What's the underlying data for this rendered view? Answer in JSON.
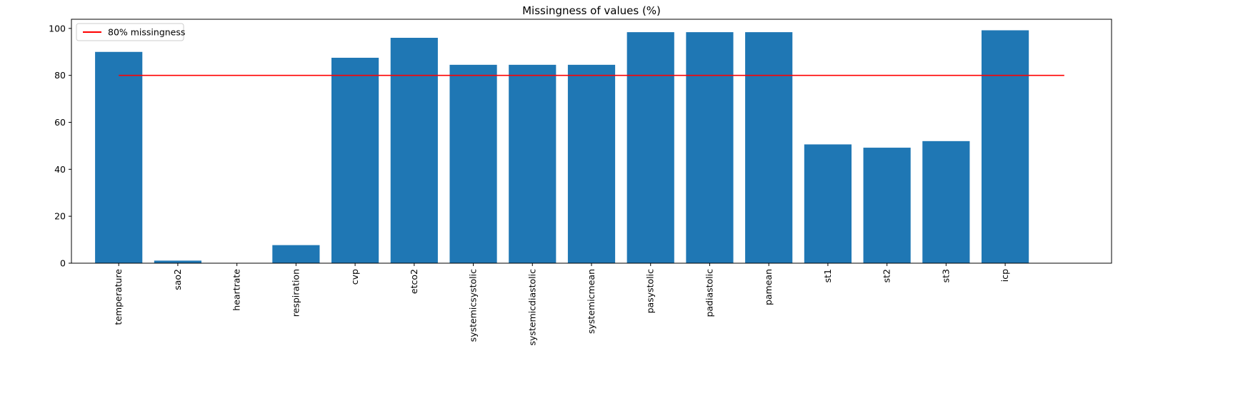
{
  "chart_data": {
    "type": "bar",
    "title": "Missingness of values (%)",
    "xlabel": "",
    "ylabel": "",
    "categories": [
      "temperature",
      "sao2",
      "heartrate",
      "respiration",
      "cvp",
      "etco2",
      "systemicsystolic",
      "systemicdiastolic",
      "systemicmean",
      "pasystolic",
      "padiastolic",
      "pamean",
      "st1",
      "st2",
      "st3",
      "icp"
    ],
    "values": [
      90.0,
      1.1,
      0.0,
      7.7,
      87.5,
      96.0,
      84.5,
      84.5,
      84.5,
      98.4,
      98.4,
      98.4,
      50.6,
      49.2,
      52.0,
      99.2
    ],
    "ylim": [
      0,
      103.9
    ],
    "yticks": [
      0,
      20,
      40,
      60,
      80,
      100
    ],
    "bar_color": "#1f77b4",
    "threshold": {
      "label": "80% missingness",
      "value": 80,
      "color": "#ff0000"
    },
    "legend_position": "top-left",
    "grid": false
  }
}
